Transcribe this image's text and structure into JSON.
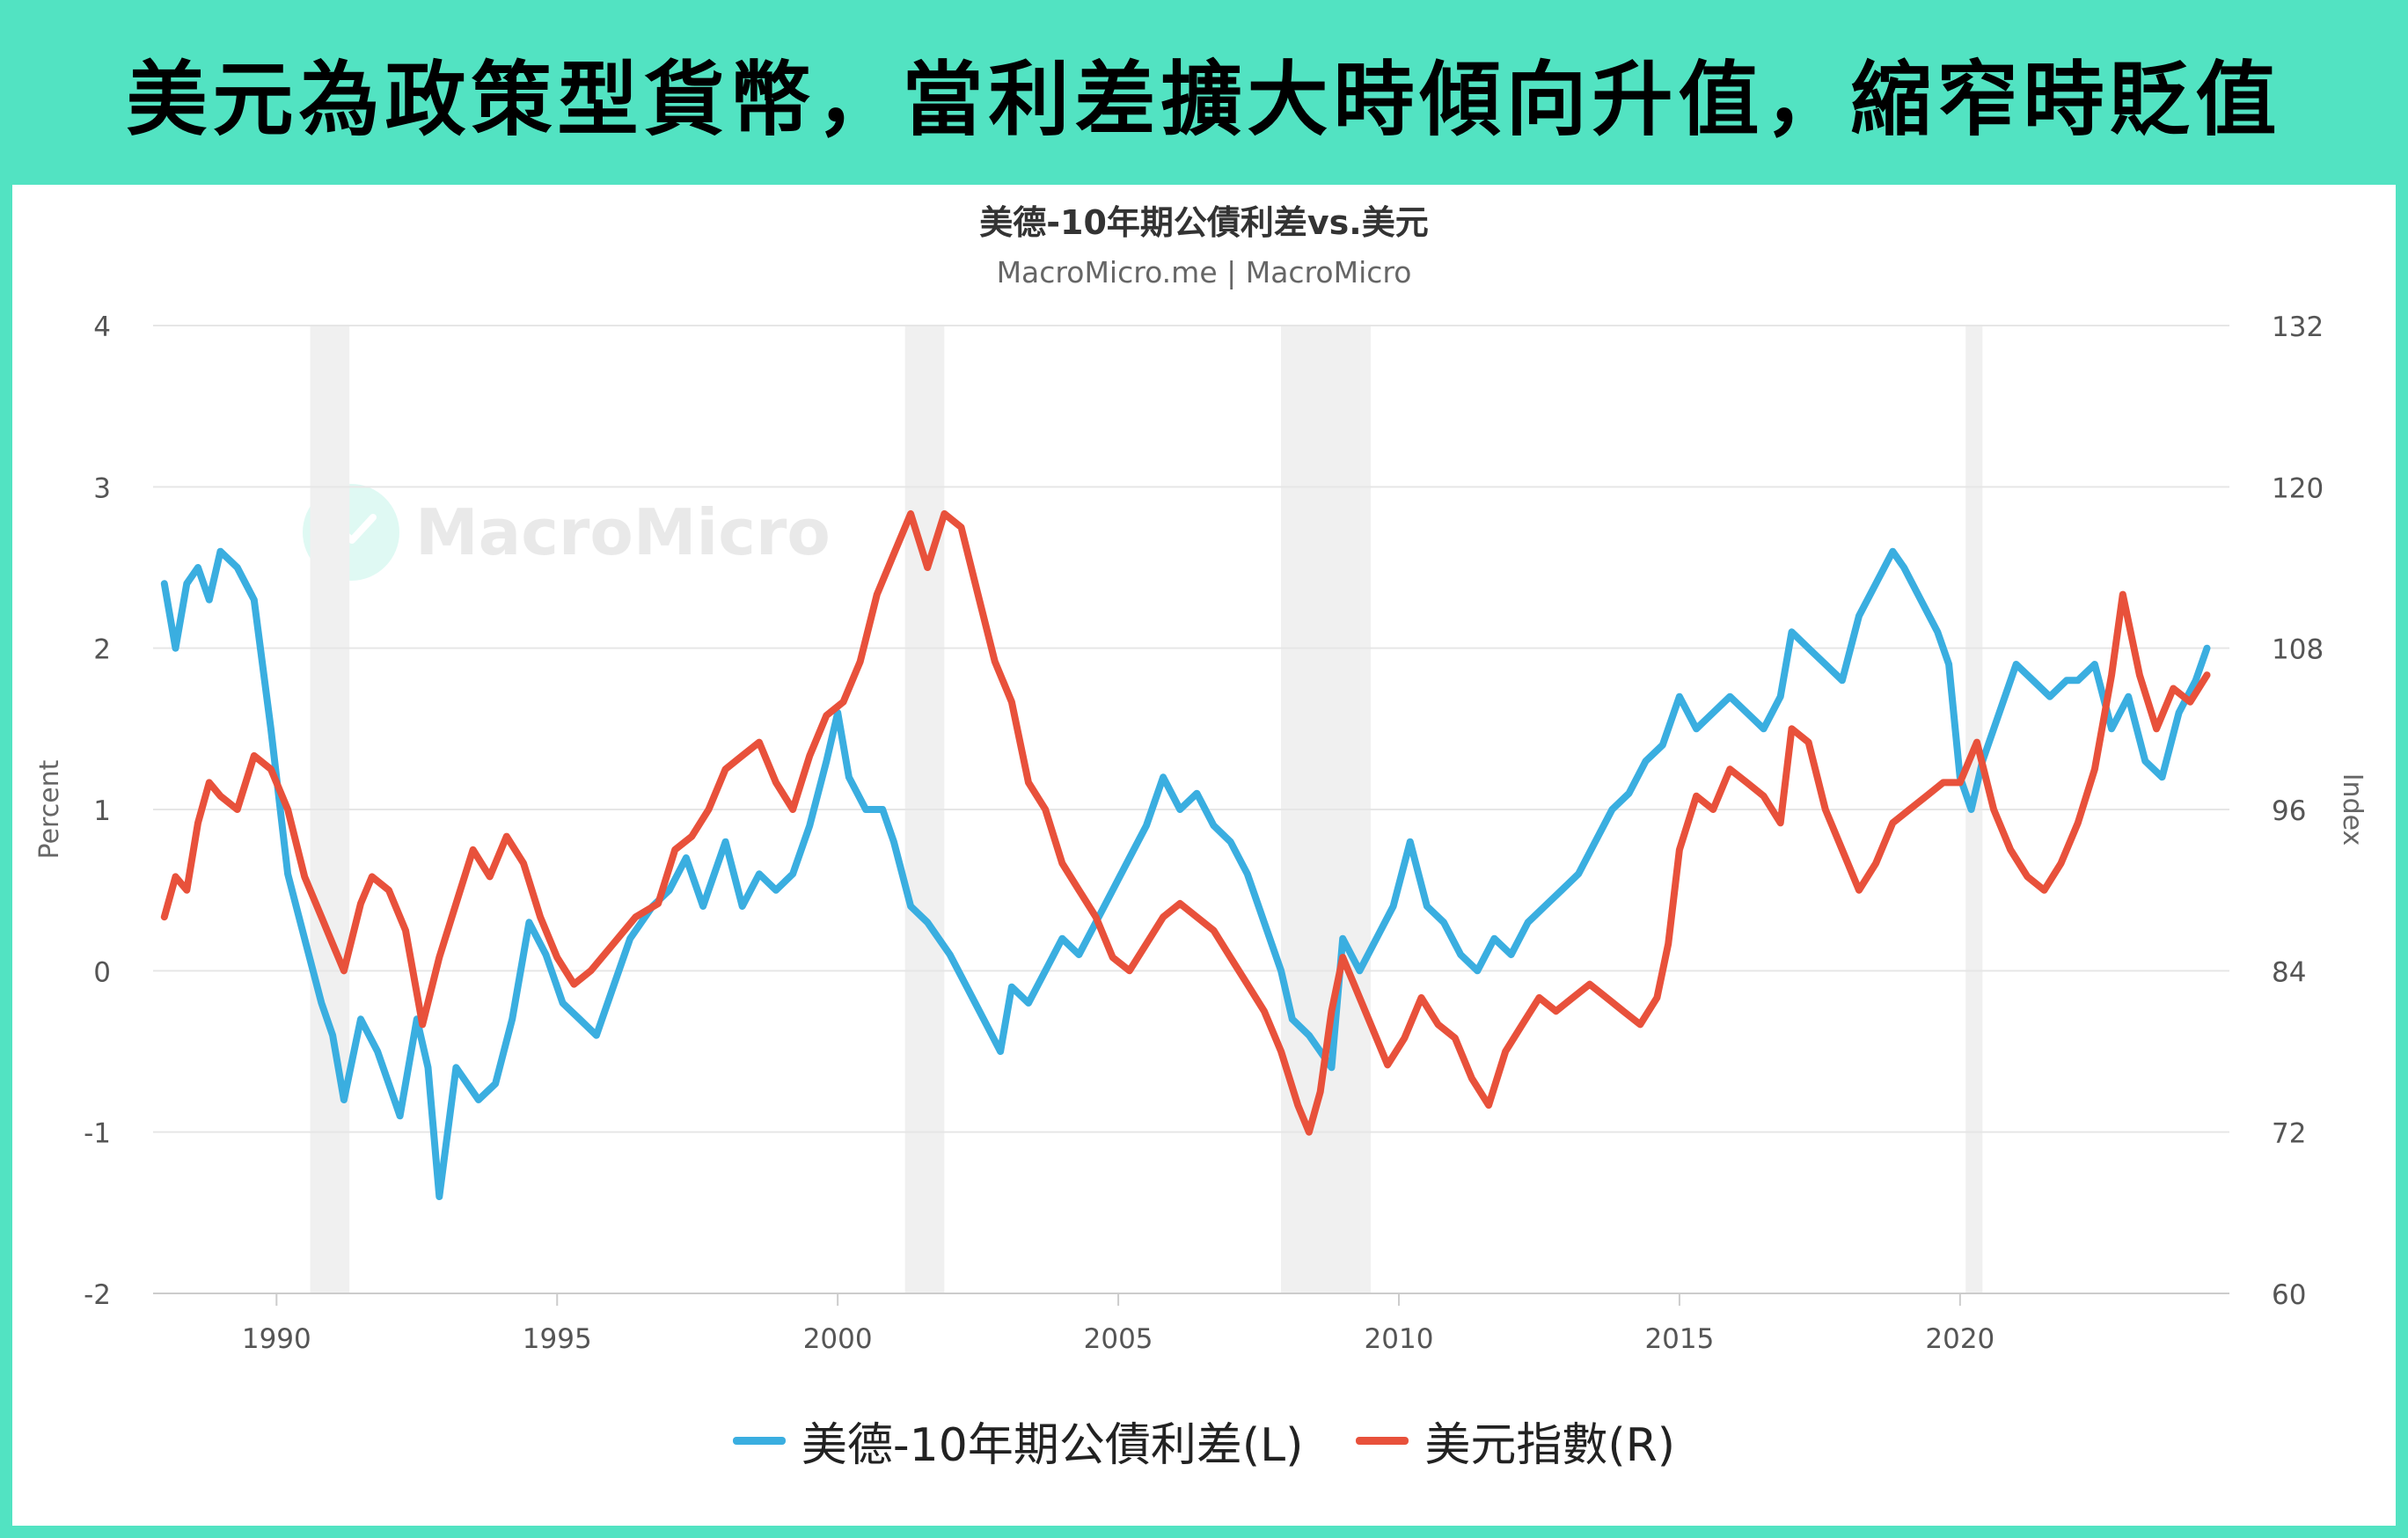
{
  "banner": {
    "title": "美元為政策型貨幣，當利差擴大時傾向升值，縮窄時貶值"
  },
  "watermark": {
    "text": "MacroMicro"
  },
  "colors": {
    "spread": "#3aaee0",
    "dxy": "#e8513b",
    "recession": "#f0f0f0",
    "grid": "#e6e6e6",
    "frame": "#52e3c2"
  },
  "chart_data": {
    "type": "line",
    "title": "美德-10年期公債利差vs.美元",
    "subtitle": "MacroMicro.me | MacroMicro",
    "ylabel_left": "Percent",
    "ylabel_right": "Index",
    "ylim_left": [
      -2,
      4
    ],
    "ylim_right": [
      60,
      132
    ],
    "y_ticks_left": [
      "4",
      "3",
      "2",
      "1",
      "0",
      "-1",
      "-2"
    ],
    "y_ticks_right": [
      "132",
      "120",
      "108",
      "96",
      "84",
      "72",
      "60"
    ],
    "xlim": [
      1987.8,
      2024.8
    ],
    "x_ticks": [
      "1990",
      "1995",
      "2000",
      "2005",
      "2010",
      "2015",
      "2020"
    ],
    "grid": true,
    "legend_position": "bottom",
    "recessions": [
      [
        1990.6,
        1991.3
      ],
      [
        2001.2,
        2001.9
      ],
      [
        2007.9,
        2009.5
      ],
      [
        2020.1,
        2020.4
      ]
    ],
    "series": [
      {
        "name": "美德-10年期公債利差(L)",
        "axis": "left",
        "x": [
          1988.0,
          1988.2,
          1988.4,
          1988.6,
          1988.8,
          1989.0,
          1989.3,
          1989.6,
          1989.9,
          1990.0,
          1990.2,
          1990.5,
          1990.8,
          1991.0,
          1991.2,
          1991.5,
          1991.8,
          1992.0,
          1992.2,
          1992.5,
          1992.7,
          1992.9,
          1993.2,
          1993.6,
          1993.9,
          1994.2,
          1994.5,
          1994.8,
          1995.1,
          1995.4,
          1995.7,
          1996.0,
          1996.3,
          1996.7,
          1997.0,
          1997.3,
          1997.6,
          1998.0,
          1998.3,
          1998.6,
          1998.9,
          1999.2,
          1999.5,
          1999.8,
          2000.0,
          2000.2,
          2000.5,
          2000.8,
          2001.0,
          2001.3,
          2001.6,
          2002.0,
          2002.3,
          2002.6,
          2002.9,
          2003.1,
          2003.4,
          2003.7,
          2004.0,
          2004.3,
          2004.6,
          2004.9,
          2005.2,
          2005.5,
          2005.8,
          2006.1,
          2006.4,
          2006.7,
          2007.0,
          2007.3,
          2007.6,
          2007.9,
          2008.1,
          2008.4,
          2008.6,
          2008.8,
          2009.0,
          2009.3,
          2009.6,
          2009.9,
          2010.2,
          2010.5,
          2010.8,
          2011.1,
          2011.4,
          2011.7,
          2012.0,
          2012.3,
          2012.6,
          2012.9,
          2013.2,
          2013.5,
          2013.8,
          2014.1,
          2014.4,
          2014.7,
          2015.0,
          2015.3,
          2015.6,
          2015.9,
          2016.2,
          2016.5,
          2016.8,
          2017.0,
          2017.3,
          2017.6,
          2017.9,
          2018.2,
          2018.5,
          2018.8,
          2019.0,
          2019.3,
          2019.6,
          2019.8,
          2020.0,
          2020.2,
          2020.4,
          2020.7,
          2021.0,
          2021.3,
          2021.6,
          2021.9,
          2022.1,
          2022.4,
          2022.7,
          2023.0,
          2023.3,
          2023.6,
          2023.9,
          2024.2,
          2024.4
        ],
        "values": [
          2.4,
          2.0,
          2.4,
          2.5,
          2.3,
          2.6,
          2.5,
          2.3,
          1.5,
          1.2,
          0.6,
          0.2,
          -0.2,
          -0.4,
          -0.8,
          -0.3,
          -0.5,
          -0.7,
          -0.9,
          -0.3,
          -0.6,
          -1.4,
          -0.6,
          -0.8,
          -0.7,
          -0.3,
          0.3,
          0.1,
          -0.2,
          -0.3,
          -0.4,
          -0.1,
          0.2,
          0.4,
          0.5,
          0.7,
          0.4,
          0.8,
          0.4,
          0.6,
          0.5,
          0.6,
          0.9,
          1.3,
          1.6,
          1.2,
          1.0,
          1.0,
          0.8,
          0.4,
          0.3,
          0.1,
          -0.1,
          -0.3,
          -0.5,
          -0.1,
          -0.2,
          0.0,
          0.2,
          0.1,
          0.3,
          0.5,
          0.7,
          0.9,
          1.2,
          1.0,
          1.1,
          0.9,
          0.8,
          0.6,
          0.3,
          0.0,
          -0.3,
          -0.4,
          -0.5,
          -0.6,
          0.2,
          0.0,
          0.2,
          0.4,
          0.8,
          0.4,
          0.3,
          0.1,
          0.0,
          0.2,
          0.1,
          0.3,
          0.4,
          0.5,
          0.6,
          0.8,
          1.0,
          1.1,
          1.3,
          1.4,
          1.7,
          1.5,
          1.6,
          1.7,
          1.6,
          1.5,
          1.7,
          2.1,
          2.0,
          1.9,
          1.8,
          2.2,
          2.4,
          2.6,
          2.5,
          2.3,
          2.1,
          1.9,
          1.2,
          1.0,
          1.3,
          1.6,
          1.9,
          1.8,
          1.7,
          1.8,
          1.8,
          1.9,
          1.5,
          1.7,
          1.3,
          1.2,
          1.6,
          1.8,
          2.0
        ]
      },
      {
        "name": "美元指數(R)",
        "axis": "right",
        "x": [
          1988.0,
          1988.2,
          1988.4,
          1988.6,
          1988.8,
          1989.0,
          1989.3,
          1989.6,
          1989.9,
          1990.2,
          1990.5,
          1990.8,
          1991.0,
          1991.2,
          1991.5,
          1991.7,
          1992.0,
          1992.3,
          1992.6,
          1992.9,
          1993.2,
          1993.5,
          1993.8,
          1994.1,
          1994.4,
          1994.7,
          1995.0,
          1995.3,
          1995.6,
          1996.0,
          1996.4,
          1996.8,
          1997.1,
          1997.4,
          1997.7,
          1998.0,
          1998.3,
          1998.6,
          1998.9,
          1999.2,
          1999.5,
          1999.8,
          2000.1,
          2000.4,
          2000.7,
          2001.0,
          2001.3,
          2001.6,
          2001.9,
          2002.2,
          2002.5,
          2002.8,
          2003.1,
          2003.4,
          2003.7,
          2004.0,
          2004.3,
          2004.6,
          2004.9,
          2005.2,
          2005.5,
          2005.8,
          2006.1,
          2006.4,
          2006.7,
          2007.0,
          2007.3,
          2007.6,
          2007.9,
          2008.2,
          2008.4,
          2008.6,
          2008.8,
          2009.0,
          2009.2,
          2009.5,
          2009.8,
          2010.1,
          2010.4,
          2010.7,
          2011.0,
          2011.3,
          2011.6,
          2011.9,
          2012.2,
          2012.5,
          2012.8,
          2013.1,
          2013.4,
          2013.7,
          2014.0,
          2014.3,
          2014.6,
          2014.8,
          2015.0,
          2015.3,
          2015.6,
          2015.9,
          2016.2,
          2016.5,
          2016.8,
          2017.0,
          2017.3,
          2017.6,
          2017.9,
          2018.2,
          2018.5,
          2018.8,
          2019.1,
          2019.4,
          2019.7,
          2020.0,
          2020.3,
          2020.6,
          2020.9,
          2021.2,
          2021.5,
          2021.8,
          2022.1,
          2022.4,
          2022.7,
          2022.9,
          2023.2,
          2023.5,
          2023.8,
          2024.1,
          2024.4
        ],
        "values": [
          88,
          91,
          90,
          95,
          98,
          97,
          96,
          100,
          99,
          96,
          91,
          88,
          86,
          84,
          89,
          91,
          90,
          87,
          80,
          85,
          89,
          93,
          91,
          94,
          92,
          88,
          85,
          83,
          84,
          86,
          88,
          89,
          93,
          94,
          96,
          99,
          100,
          101,
          98,
          96,
          100,
          103,
          104,
          107,
          112,
          115,
          118,
          114,
          118,
          117,
          112,
          107,
          104,
          98,
          96,
          92,
          90,
          88,
          85,
          84,
          86,
          88,
          89,
          88,
          87,
          85,
          83,
          81,
          78,
          74,
          72,
          75,
          81,
          85,
          83,
          80,
          77,
          79,
          82,
          80,
          79,
          76,
          74,
          78,
          80,
          82,
          81,
          82,
          83,
          82,
          81,
          80,
          82,
          86,
          93,
          97,
          96,
          99,
          98,
          97,
          95,
          102,
          101,
          96,
          93,
          90,
          92,
          95,
          96,
          97,
          98,
          98,
          101,
          96,
          93,
          91,
          90,
          92,
          95,
          99,
          106,
          112,
          106,
          102,
          105,
          104,
          106
        ]
      }
    ]
  }
}
